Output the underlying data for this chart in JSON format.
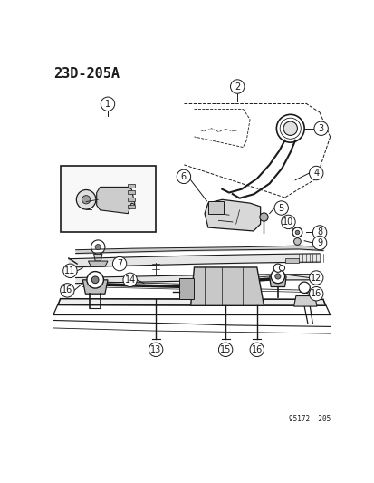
{
  "title": "23D-205A",
  "bg_color": "#ffffff",
  "line_color": "#1a1a1a",
  "fig_width": 4.14,
  "fig_height": 5.33,
  "dpi": 100,
  "watermark": "95172  205"
}
